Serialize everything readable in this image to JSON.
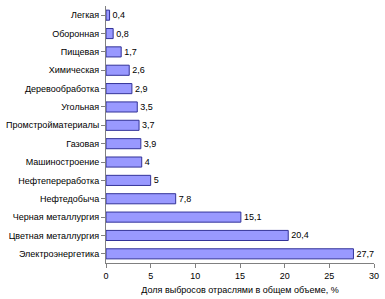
{
  "chart_data": {
    "type": "bar",
    "orientation": "horizontal",
    "x_label": "Доля выбросов отраслями в общем объеме, %",
    "categories": [
      "Легкая",
      "Оборонная",
      "Пищевая",
      "Химическая",
      "Деревообработка",
      "Угольная",
      "Промстройматериалы",
      "Газовая",
      "Машиностроение",
      "Нефтепереработка",
      "Нефтедобыча",
      "Черная металлургия",
      "Цветная металлургия",
      "Электроэнергетика"
    ],
    "values": [
      0.4,
      0.8,
      1.7,
      2.6,
      2.9,
      3.5,
      3.7,
      3.9,
      4,
      5,
      7.8,
      15.1,
      20.4,
      27.7
    ],
    "value_labels": [
      "0,4",
      "0,8",
      "1,7",
      "2,6",
      "2,9",
      "3,5",
      "3,7",
      "3,9",
      "4",
      "5",
      "7,8",
      "15,1",
      "20,4",
      "27,7"
    ],
    "data_labels": true,
    "color": "#9999ff",
    "xlim": [
      0,
      30
    ],
    "xticks": [
      0,
      5,
      10,
      15,
      20,
      25,
      30
    ],
    "grid": false
  }
}
